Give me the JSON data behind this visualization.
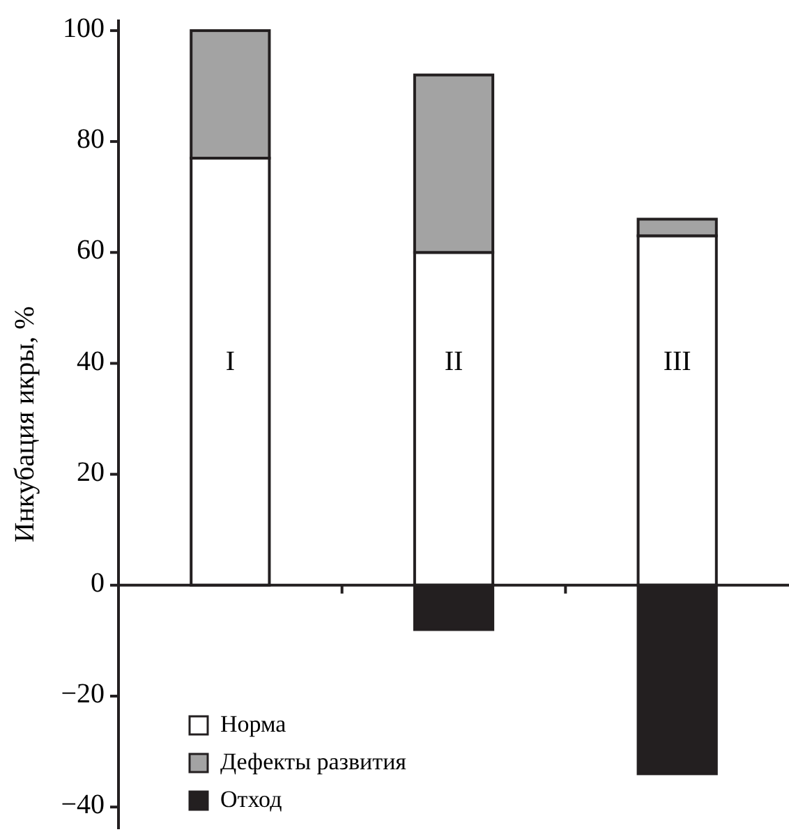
{
  "chart_data": {
    "type": "bar",
    "stacked": true,
    "ylabel": "Инкубация икры, %",
    "categories": [
      "I",
      "II",
      "III"
    ],
    "series": [
      {
        "name": "Норма",
        "color": "#ffffff",
        "values": [
          77,
          60,
          63
        ]
      },
      {
        "name": "Дефекты развития",
        "color": "#a3a3a3",
        "values": [
          23,
          32,
          3
        ]
      },
      {
        "name": "Отход",
        "color": "#231f20",
        "values": [
          0,
          -8,
          -34
        ]
      }
    ],
    "ylim": [
      -44,
      102
    ],
    "yticks": [
      {
        "value": -40,
        "label": "−40"
      },
      {
        "value": -20,
        "label": "−20"
      },
      0,
      20,
      40,
      60,
      80,
      100
    ],
    "legend": "bottom left"
  }
}
